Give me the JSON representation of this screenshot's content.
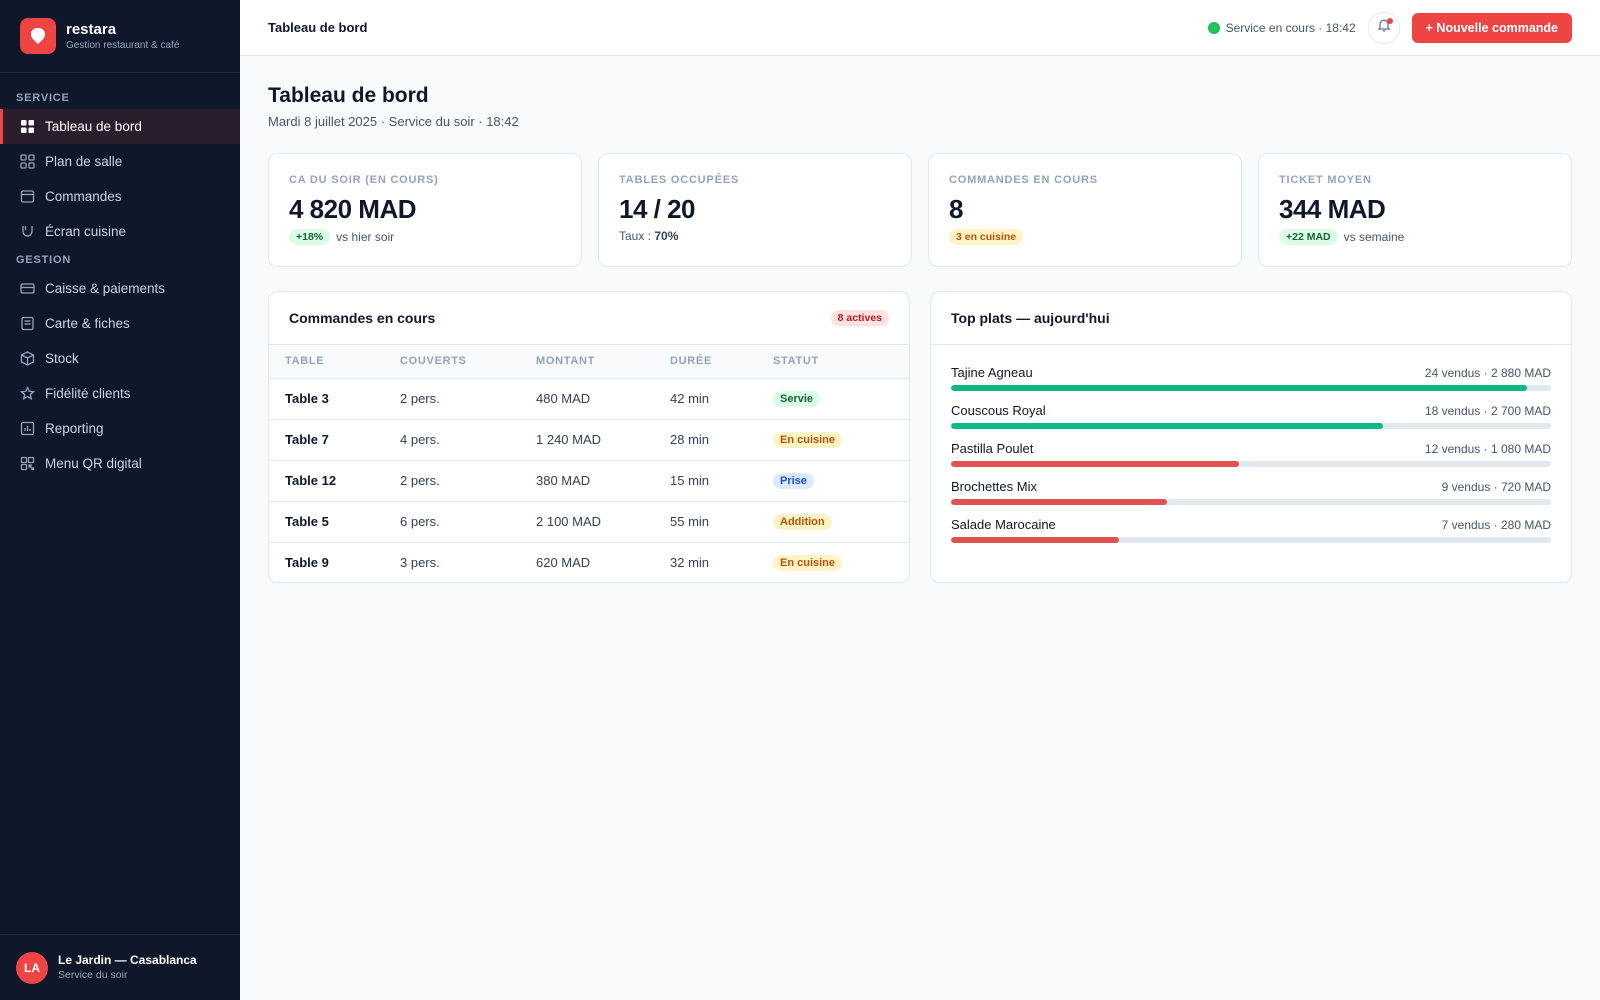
{
  "brand": {
    "name": "restara",
    "tagline": "Gestion restaurant & café",
    "accent": "#ef4444"
  },
  "sidebar": {
    "section_service": "SERVICE",
    "section_gestion": "GESTION",
    "service_items": [
      {
        "label": "Tableau de bord",
        "icon": "dashboard-grid-icon",
        "active": true
      },
      {
        "label": "Plan de salle",
        "icon": "floor-plan-icon"
      },
      {
        "label": "Commandes",
        "icon": "orders-icon"
      },
      {
        "label": "Écran cuisine",
        "icon": "kitchen-icon"
      }
    ],
    "gestion_items": [
      {
        "label": "Caisse & paiements",
        "icon": "credit-card-icon"
      },
      {
        "label": "Carte & fiches",
        "icon": "menu-card-icon"
      },
      {
        "label": "Stock",
        "icon": "box-icon"
      },
      {
        "label": "Fidélité clients",
        "icon": "star-icon"
      },
      {
        "label": "Reporting",
        "icon": "chart-icon"
      },
      {
        "label": "Menu QR digital",
        "icon": "qr-code-icon"
      }
    ],
    "footer": {
      "initials": "LA",
      "name": "Le Jardin — Casablanca",
      "subtitle": "Service du soir"
    }
  },
  "topbar": {
    "title": "Tableau de bord",
    "status": "Service en cours · 18:42",
    "new_order_label": "+ Nouvelle commande"
  },
  "page": {
    "title": "Tableau de bord",
    "subtitle": "Mardi 8 juillet 2025 · Service du soir · 18:42"
  },
  "kpis": [
    {
      "label": "CA DU SOIR (EN COURS)",
      "value": "4 820 MAD",
      "badge": "+18%",
      "badge_color": "green",
      "meta": "vs hier soir"
    },
    {
      "label": "TABLES OCCUPÉES",
      "value": "14 / 20",
      "meta_prefix": "Taux : ",
      "meta_strong": "70%"
    },
    {
      "label": "COMMANDES EN COURS",
      "value": "8",
      "badge": "3 en cuisine",
      "badge_color": "amber"
    },
    {
      "label": "TICKET MOYEN",
      "value": "344 MAD",
      "badge": "+22 MAD",
      "badge_color": "green",
      "meta": "vs semaine"
    }
  ],
  "orders": {
    "title": "Commandes en cours",
    "badge": "8 actives",
    "columns": [
      "TABLE",
      "COUVERTS",
      "MONTANT",
      "DURÉE",
      "STATUT"
    ],
    "rows": [
      {
        "table": "Table 3",
        "covers": "2 pers.",
        "amount": "480 MAD",
        "duration": "42 min",
        "status": "Servie",
        "status_kind": "servie"
      },
      {
        "table": "Table 7",
        "covers": "4 pers.",
        "amount": "1 240 MAD",
        "duration": "28 min",
        "status": "En cuisine",
        "status_kind": "encuisine"
      },
      {
        "table": "Table 12",
        "covers": "2 pers.",
        "amount": "380 MAD",
        "duration": "15 min",
        "status": "Prise",
        "status_kind": "prise"
      },
      {
        "table": "Table 5",
        "covers": "6 pers.",
        "amount": "2 100 MAD",
        "duration": "55 min",
        "status": "Addition",
        "status_kind": "addition"
      },
      {
        "table": "Table 9",
        "covers": "3 pers.",
        "amount": "620 MAD",
        "duration": "32 min",
        "status": "En cuisine",
        "status_kind": "encuisine"
      }
    ]
  },
  "top_dishes": {
    "title": "Top plats — aujourd'hui",
    "items": [
      {
        "name": "Tajine Agneau",
        "stat": "24 vendus · 2 880 MAD",
        "fill": 0.96,
        "color": "#10b981"
      },
      {
        "name": "Couscous Royal",
        "stat": "18 vendus · 2 700 MAD",
        "fill": 0.72,
        "color": "#10b981"
      },
      {
        "name": "Pastilla Poulet",
        "stat": "12 vendus · 1 080 MAD",
        "fill": 0.48,
        "color": "#e05252"
      },
      {
        "name": "Brochettes Mix",
        "stat": "9 vendus · 720 MAD",
        "fill": 0.36,
        "color": "#e05252"
      },
      {
        "name": "Salade Marocaine",
        "stat": "7 vendus · 280 MAD",
        "fill": 0.28,
        "color": "#e05252"
      }
    ]
  }
}
